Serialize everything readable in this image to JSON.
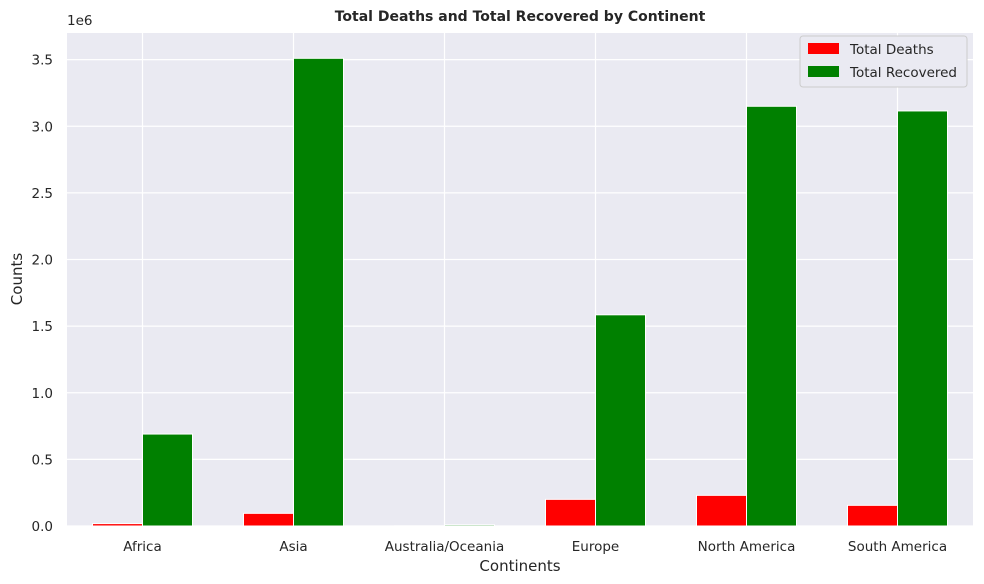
{
  "chart_data": {
    "type": "bar",
    "title": "Total Deaths and Total Recovered by Continent",
    "xlabel": "Continents",
    "ylabel": "Counts",
    "offset_text": "1e6",
    "categories": [
      "Africa",
      "Asia",
      "Australia/Oceania",
      "Europe",
      "North America",
      "South America"
    ],
    "series": [
      {
        "name": "Total Deaths",
        "color": "#ff0000",
        "values": [
          18000,
          95000,
          1000,
          200000,
          230000,
          155000
        ]
      },
      {
        "name": "Total Recovered",
        "color": "#008000",
        "values": [
          690000,
          3510000,
          9000,
          1585000,
          3150000,
          3115000
        ]
      }
    ],
    "ylim": [
      0,
      3700000
    ],
    "yticks": [
      0,
      500000,
      1000000,
      1500000,
      2000000,
      2500000,
      3000000,
      3500000
    ],
    "ytick_labels": [
      "0.0",
      "0.5",
      "1.0",
      "1.5",
      "2.0",
      "2.5",
      "3.0",
      "3.5"
    ],
    "grid": true,
    "legend_position": "top-right",
    "background": "#eaeaf2"
  }
}
